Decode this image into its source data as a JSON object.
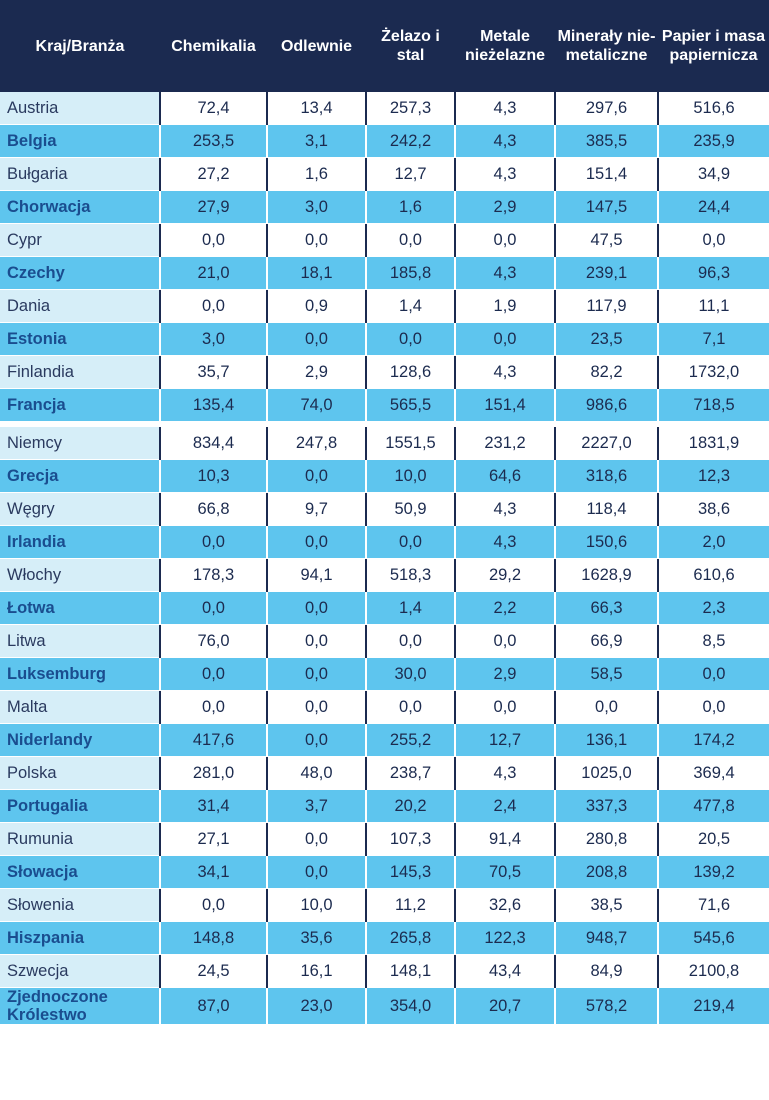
{
  "table": {
    "headers": [
      "Kraj/Branża",
      "Chemikalia",
      "Odlewnie",
      "Żelazo i stal",
      "Metale nieżelazne",
      "Minerały nie-metaliczne",
      "Papier i masa papiernicza"
    ],
    "rows": [
      [
        "Austria",
        "72,4",
        "13,4",
        "257,3",
        "4,3",
        "297,6",
        "516,6"
      ],
      [
        "Belgia",
        "253,5",
        "3,1",
        "242,2",
        "4,3",
        "385,5",
        "235,9"
      ],
      [
        "Bułgaria",
        "27,2",
        "1,6",
        "12,7",
        "4,3",
        "151,4",
        "34,9"
      ],
      [
        "Chorwacja",
        "27,9",
        "3,0",
        "1,6",
        "2,9",
        "147,5",
        "24,4"
      ],
      [
        "Cypr",
        "0,0",
        "0,0",
        "0,0",
        "0,0",
        "47,5",
        "0,0"
      ],
      [
        "Czechy",
        "21,0",
        "18,1",
        "185,8",
        "4,3",
        "239,1",
        "96,3"
      ],
      [
        "Dania",
        "0,0",
        "0,9",
        "1,4",
        "1,9",
        "117,9",
        "11,1"
      ],
      [
        "Estonia",
        "3,0",
        "0,0",
        "0,0",
        "0,0",
        "23,5",
        "7,1"
      ],
      [
        "Finlandia",
        "35,7",
        "2,9",
        "128,6",
        "4,3",
        "82,2",
        "1732,0"
      ],
      [
        "Francja",
        "135,4",
        "74,0",
        "565,5",
        "151,4",
        "986,6",
        "718,5"
      ],
      [
        "Niemcy",
        "834,4",
        "247,8",
        "1551,5",
        "231,2",
        "2227,0",
        "1831,9"
      ],
      [
        "Grecja",
        "10,3",
        "0,0",
        "10,0",
        "64,6",
        "318,6",
        "12,3"
      ],
      [
        "Węgry",
        "66,8",
        "9,7",
        "50,9",
        "4,3",
        "118,4",
        "38,6"
      ],
      [
        "Irlandia",
        "0,0",
        "0,0",
        "0,0",
        "4,3",
        "150,6",
        "2,0"
      ],
      [
        "Włochy",
        "178,3",
        "94,1",
        "518,3",
        "29,2",
        "1628,9",
        "610,6"
      ],
      [
        "Łotwa",
        "0,0",
        "0,0",
        "1,4",
        "2,2",
        "66,3",
        "2,3"
      ],
      [
        "Litwa",
        "76,0",
        "0,0",
        "0,0",
        "0,0",
        "66,9",
        "8,5"
      ],
      [
        "Luksemburg",
        "0,0",
        "0,0",
        "30,0",
        "2,9",
        "58,5",
        "0,0"
      ],
      [
        "Malta",
        "0,0",
        "0,0",
        "0,0",
        "0,0",
        "0,0",
        "0,0"
      ],
      [
        "Niderlandy",
        "417,6",
        "0,0",
        "255,2",
        "12,7",
        "136,1",
        "174,2"
      ],
      [
        "Polska",
        "281,0",
        "48,0",
        "238,7",
        "4,3",
        "1025,0",
        "369,4"
      ],
      [
        "Portugalia",
        "31,4",
        "3,7",
        "20,2",
        "2,4",
        "337,3",
        "477,8"
      ],
      [
        "Rumunia",
        "27,1",
        "0,0",
        "107,3",
        "91,4",
        "280,8",
        "20,5"
      ],
      [
        "Słowacja",
        "34,1",
        "0,0",
        "145,3",
        "70,5",
        "208,8",
        "139,2"
      ],
      [
        "Słowenia",
        "0,0",
        "10,0",
        "11,2",
        "32,6",
        "38,5",
        "71,6"
      ],
      [
        "Hiszpania",
        "148,8",
        "35,6",
        "265,8",
        "122,3",
        "948,7",
        "545,6"
      ],
      [
        "Szwecja",
        "24,5",
        "16,1",
        "148,1",
        "43,4",
        "84,9",
        "2100,8"
      ],
      [
        "Zjednoczone Królestwo",
        "87,0",
        "23,0",
        "354,0",
        "20,7",
        "578,2",
        "219,4"
      ]
    ]
  },
  "colors": {
    "header_bg": "#1b2a50",
    "header_text": "#ffffff",
    "highlight_row_bg": "#5ec5ee",
    "light_label_bg": "#d6eef8",
    "highlight_label_text": "#1a4d8f",
    "body_text": "#1c2b4f"
  }
}
